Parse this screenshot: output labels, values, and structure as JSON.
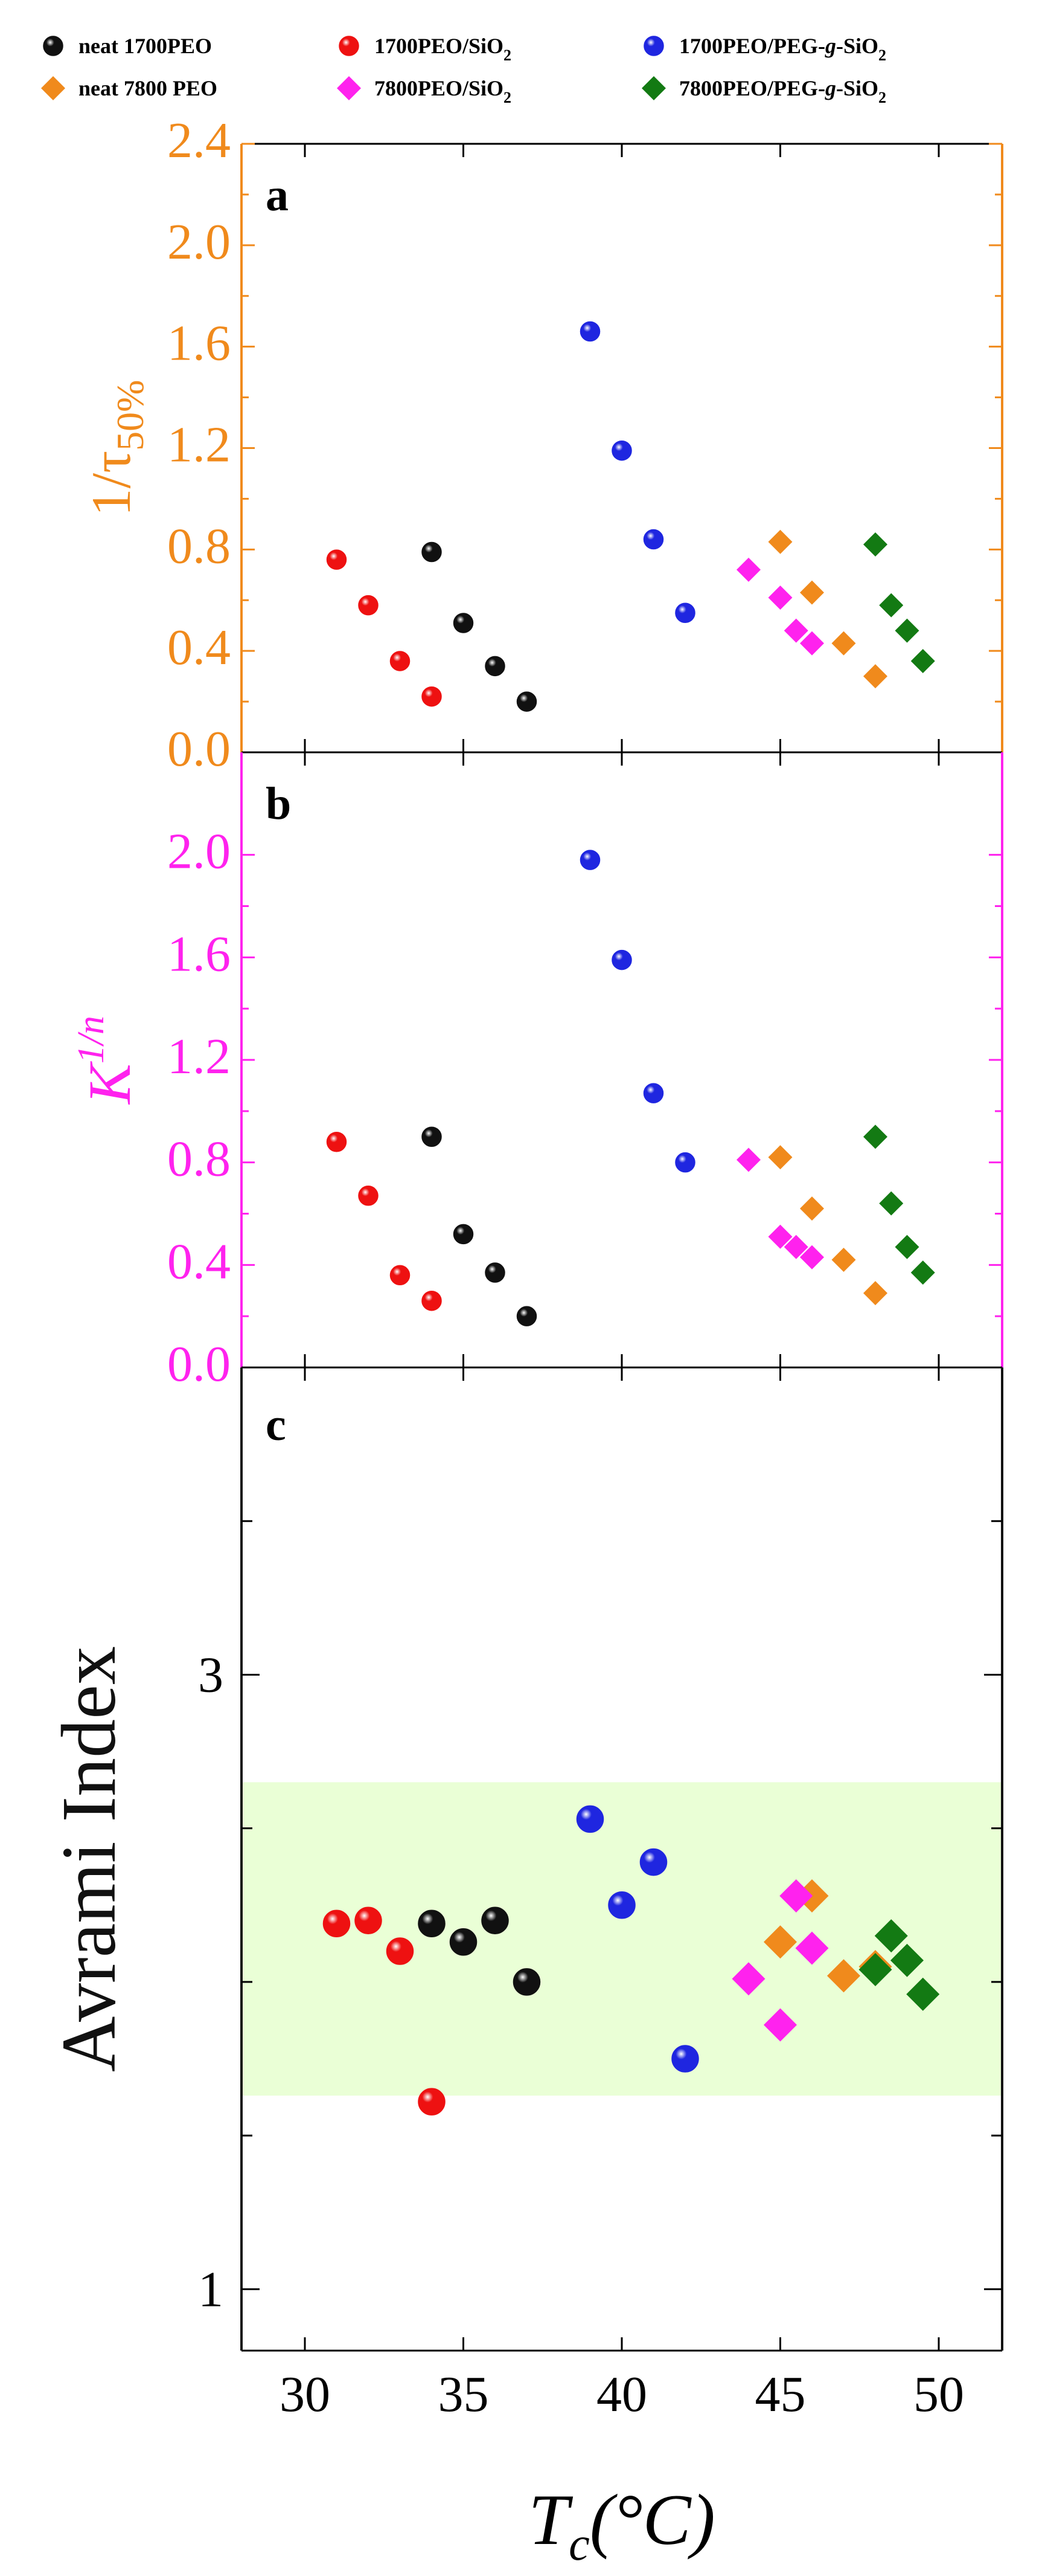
{
  "colors": {
    "black": "#111111",
    "red": "#ee1111",
    "blue": "#1f26e0",
    "orange": "#f08a1c",
    "magenta": "#ff22ee",
    "green": "#137a13",
    "band": "#eaffd6"
  },
  "legend": [
    {
      "label": "neat 1700PEO",
      "marker": "circle",
      "color": "black"
    },
    {
      "label": "1700PEO/SiO",
      "sub": "2",
      "marker": "circle",
      "color": "red"
    },
    {
      "label": "1700PEO/PEG-",
      "ital": "g",
      "after": "-SiO",
      "sub": "2",
      "marker": "circle",
      "color": "blue"
    },
    {
      "label": "neat 7800 PEO",
      "marker": "diamond",
      "color": "orange"
    },
    {
      "label": "7800PEO/SiO",
      "sub": "2",
      "marker": "diamond",
      "color": "magenta"
    },
    {
      "label": "7800PEO/PEG-",
      "ital": "g",
      "after": "-SiO",
      "sub": "2",
      "marker": "diamond",
      "color": "green"
    }
  ],
  "xaxis": {
    "range": [
      28,
      52
    ],
    "ticks": [
      30,
      35,
      40,
      45,
      50
    ],
    "label_main": "T",
    "label_sub": "c",
    "label_unit": "(°C)"
  },
  "chart_data": [
    {
      "panel": "a",
      "type": "scatter",
      "accent": "orange",
      "ylabel": {
        "main": "1/τ",
        "sub": "50%"
      },
      "ylim": [
        0,
        2.4
      ],
      "yticks": [
        "0.0",
        "0.4",
        "0.8",
        "1.2",
        "1.6",
        "2.0",
        "2.4"
      ],
      "series": [
        {
          "name": "neat 1700PEO",
          "marker": "circle",
          "color": "black",
          "x": [
            34,
            35,
            36,
            37
          ],
          "y": [
            0.79,
            0.51,
            0.34,
            0.2
          ]
        },
        {
          "name": "1700PEO/SiO2",
          "marker": "circle",
          "color": "red",
          "x": [
            31,
            32,
            33,
            34
          ],
          "y": [
            0.76,
            0.58,
            0.36,
            0.22
          ]
        },
        {
          "name": "1700PEO/PEG-g-SiO2",
          "marker": "circle",
          "color": "blue",
          "x": [
            39,
            40,
            41,
            42
          ],
          "y": [
            1.66,
            1.19,
            0.84,
            0.55
          ]
        },
        {
          "name": "neat 7800 PEO",
          "marker": "diamond",
          "color": "orange",
          "x": [
            45,
            46,
            47,
            48
          ],
          "y": [
            0.83,
            0.63,
            0.43,
            0.3
          ]
        },
        {
          "name": "7800PEO/SiO2",
          "marker": "diamond",
          "color": "magenta",
          "x": [
            44,
            45,
            45.5,
            46
          ],
          "y": [
            0.72,
            0.61,
            0.48,
            0.43
          ]
        },
        {
          "name": "7800PEO/PEG-g-SiO2",
          "marker": "diamond",
          "color": "green",
          "x": [
            48,
            48.5,
            49,
            49.5
          ],
          "y": [
            0.82,
            0.58,
            0.48,
            0.36
          ]
        }
      ]
    },
    {
      "panel": "b",
      "type": "scatter",
      "accent": "magenta",
      "ylabel": {
        "main": "K",
        "sup": "1/n"
      },
      "ylim": [
        0,
        2.4
      ],
      "yticks": [
        "0.0",
        "0.4",
        "0.8",
        "1.2",
        "1.6",
        "2.0"
      ],
      "series": [
        {
          "name": "neat 1700PEO",
          "marker": "circle",
          "color": "black",
          "x": [
            34,
            35,
            36,
            37
          ],
          "y": [
            0.9,
            0.52,
            0.37,
            0.2
          ]
        },
        {
          "name": "1700PEO/SiO2",
          "marker": "circle",
          "color": "red",
          "x": [
            31,
            32,
            33,
            34
          ],
          "y": [
            0.88,
            0.67,
            0.36,
            0.26
          ]
        },
        {
          "name": "1700PEO/PEG-g-SiO2",
          "marker": "circle",
          "color": "blue",
          "x": [
            39,
            40,
            41,
            42
          ],
          "y": [
            1.98,
            1.59,
            1.07,
            0.8
          ]
        },
        {
          "name": "neat 7800 PEO",
          "marker": "diamond",
          "color": "orange",
          "x": [
            45,
            46,
            47,
            48
          ],
          "y": [
            0.82,
            0.62,
            0.42,
            0.29
          ]
        },
        {
          "name": "7800PEO/SiO2",
          "marker": "diamond",
          "color": "magenta",
          "x": [
            44,
            45,
            45.5,
            46
          ],
          "y": [
            0.81,
            0.51,
            0.47,
            0.43
          ]
        },
        {
          "name": "7800PEO/PEG-g-SiO2",
          "marker": "diamond",
          "color": "green",
          "x": [
            48,
            48.5,
            49,
            49.5
          ],
          "y": [
            0.9,
            0.64,
            0.47,
            0.37
          ]
        }
      ]
    },
    {
      "panel": "c",
      "type": "scatter",
      "accent": "black",
      "ylabel": {
        "main": "Avrami Index"
      },
      "ylim": [
        0.8,
        4.0
      ],
      "yticks": [
        "1",
        "3"
      ],
      "ymajor": [
        1,
        3
      ],
      "ytick_positions": [
        1,
        1.5,
        2,
        2.5,
        3,
        3.5
      ],
      "band": [
        1.63,
        2.65
      ],
      "series": [
        {
          "name": "neat 1700PEO",
          "marker": "circle",
          "color": "black",
          "x": [
            34,
            35,
            36,
            37
          ],
          "y": [
            2.19,
            2.13,
            2.2,
            2.0
          ]
        },
        {
          "name": "1700PEO/SiO2",
          "marker": "circle",
          "color": "red",
          "x": [
            31,
            32,
            33,
            34
          ],
          "y": [
            2.19,
            2.2,
            2.1,
            1.61
          ]
        },
        {
          "name": "1700PEO/PEG-g-SiO2",
          "marker": "circle",
          "color": "blue",
          "x": [
            39,
            40,
            41,
            42
          ],
          "y": [
            2.53,
            2.25,
            2.39,
            1.75
          ]
        },
        {
          "name": "neat 7800 PEO",
          "marker": "diamond",
          "color": "orange",
          "x": [
            45,
            46,
            47,
            48
          ],
          "y": [
            2.13,
            2.28,
            2.02,
            2.05
          ]
        },
        {
          "name": "7800PEO/SiO2",
          "marker": "diamond",
          "color": "magenta",
          "x": [
            44,
            45,
            45.5,
            46
          ],
          "y": [
            2.01,
            1.86,
            2.28,
            2.11
          ]
        },
        {
          "name": "7800PEO/PEG-g-SiO2",
          "marker": "diamond",
          "color": "green",
          "x": [
            48,
            48.5,
            49,
            49.5
          ],
          "y": [
            2.04,
            2.15,
            2.07,
            1.96
          ]
        }
      ]
    }
  ]
}
